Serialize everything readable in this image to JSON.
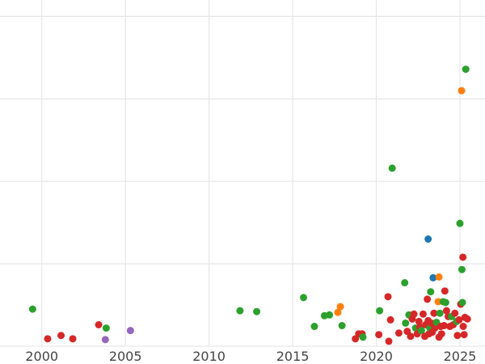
{
  "chart_data": {
    "type": "scatter",
    "title": "",
    "xlabel": "",
    "ylabel": "",
    "xlim": [
      1997.5,
      2026.5
    ],
    "ylim": [
      0,
      4.2
    ],
    "xticks": [
      2000,
      2005,
      2010,
      2015,
      2020,
      2025
    ],
    "yticks": [
      0,
      1,
      2,
      3,
      4
    ],
    "grid": true,
    "legend": "none",
    "colors": {
      "blue": "#1f77b4",
      "orange": "#ff7f0e",
      "green": "#2ca02c",
      "red": "#d62728",
      "purple": "#9467bd"
    },
    "points": [
      {
        "x": 1999.45,
        "y": 0.45,
        "c": "green"
      },
      {
        "x": 2000.35,
        "y": 0.09,
        "c": "red"
      },
      {
        "x": 2001.15,
        "y": 0.13,
        "c": "red"
      },
      {
        "x": 2001.85,
        "y": 0.09,
        "c": "red"
      },
      {
        "x": 2003.4,
        "y": 0.26,
        "c": "red"
      },
      {
        "x": 2003.85,
        "y": 0.22,
        "c": "green"
      },
      {
        "x": 2003.8,
        "y": 0.08,
        "c": "purple"
      },
      {
        "x": 2005.3,
        "y": 0.19,
        "c": "purple"
      },
      {
        "x": 2011.85,
        "y": 0.43,
        "c": "green"
      },
      {
        "x": 2012.85,
        "y": 0.42,
        "c": "green"
      },
      {
        "x": 2015.65,
        "y": 0.59,
        "c": "green"
      },
      {
        "x": 2016.3,
        "y": 0.24,
        "c": "green"
      },
      {
        "x": 2016.9,
        "y": 0.37,
        "c": "green"
      },
      {
        "x": 2017.2,
        "y": 0.38,
        "c": "green"
      },
      {
        "x": 2017.7,
        "y": 0.41,
        "c": "orange"
      },
      {
        "x": 2017.85,
        "y": 0.48,
        "c": "orange"
      },
      {
        "x": 2017.95,
        "y": 0.25,
        "c": "green"
      },
      {
        "x": 2018.75,
        "y": 0.09,
        "c": "red"
      },
      {
        "x": 2018.95,
        "y": 0.15,
        "c": "red"
      },
      {
        "x": 2019.15,
        "y": 0.15,
        "c": "red"
      },
      {
        "x": 2019.2,
        "y": 0.11,
        "c": "green"
      },
      {
        "x": 2020.15,
        "y": 0.14,
        "c": "red"
      },
      {
        "x": 2020.2,
        "y": 0.43,
        "c": "green"
      },
      {
        "x": 2020.7,
        "y": 0.6,
        "c": "red"
      },
      {
        "x": 2020.75,
        "y": 0.06,
        "c": "red"
      },
      {
        "x": 2020.85,
        "y": 0.32,
        "c": "red"
      },
      {
        "x": 2020.95,
        "y": 2.16,
        "c": "green"
      },
      {
        "x": 2021.35,
        "y": 0.16,
        "c": "red"
      },
      {
        "x": 2021.7,
        "y": 0.77,
        "c": "green"
      },
      {
        "x": 2021.75,
        "y": 0.28,
        "c": "green"
      },
      {
        "x": 2021.85,
        "y": 0.18,
        "c": "red"
      },
      {
        "x": 2021.95,
        "y": 0.38,
        "c": "green"
      },
      {
        "x": 2022.05,
        "y": 0.12,
        "c": "red"
      },
      {
        "x": 2022.15,
        "y": 0.33,
        "c": "red"
      },
      {
        "x": 2022.25,
        "y": 0.39,
        "c": "red"
      },
      {
        "x": 2022.35,
        "y": 0.22,
        "c": "green"
      },
      {
        "x": 2022.45,
        "y": 0.15,
        "c": "red"
      },
      {
        "x": 2022.55,
        "y": 0.3,
        "c": "red"
      },
      {
        "x": 2022.6,
        "y": 0.23,
        "c": "red"
      },
      {
        "x": 2022.7,
        "y": 0.19,
        "c": "green"
      },
      {
        "x": 2022.8,
        "y": 0.39,
        "c": "red"
      },
      {
        "x": 2022.9,
        "y": 0.12,
        "c": "red"
      },
      {
        "x": 2022.95,
        "y": 0.26,
        "c": "red"
      },
      {
        "x": 2023.05,
        "y": 0.57,
        "c": "red"
      },
      {
        "x": 2023.1,
        "y": 1.3,
        "c": "blue"
      },
      {
        "x": 2023.1,
        "y": 0.31,
        "c": "red"
      },
      {
        "x": 2023.15,
        "y": 0.15,
        "c": "red"
      },
      {
        "x": 2023.2,
        "y": 0.22,
        "c": "green"
      },
      {
        "x": 2023.25,
        "y": 0.66,
        "c": "green"
      },
      {
        "x": 2023.3,
        "y": 0.28,
        "c": "red"
      },
      {
        "x": 2023.35,
        "y": 0.17,
        "c": "red"
      },
      {
        "x": 2023.4,
        "y": 0.83,
        "c": "blue"
      },
      {
        "x": 2023.45,
        "y": 0.4,
        "c": "red"
      },
      {
        "x": 2023.5,
        "y": 0.22,
        "c": "red"
      },
      {
        "x": 2023.6,
        "y": 0.29,
        "c": "green"
      },
      {
        "x": 2023.7,
        "y": 0.54,
        "c": "orange"
      },
      {
        "x": 2023.75,
        "y": 0.84,
        "c": "orange"
      },
      {
        "x": 2023.75,
        "y": 0.11,
        "c": "red"
      },
      {
        "x": 2023.8,
        "y": 0.4,
        "c": "green"
      },
      {
        "x": 2023.85,
        "y": 0.24,
        "c": "red"
      },
      {
        "x": 2023.9,
        "y": 0.15,
        "c": "red"
      },
      {
        "x": 2024.0,
        "y": 0.54,
        "c": "green"
      },
      {
        "x": 2024.05,
        "y": 0.25,
        "c": "red"
      },
      {
        "x": 2024.1,
        "y": 0.67,
        "c": "red"
      },
      {
        "x": 2024.15,
        "y": 0.53,
        "c": "green"
      },
      {
        "x": 2024.2,
        "y": 0.43,
        "c": "red"
      },
      {
        "x": 2024.3,
        "y": 0.36,
        "c": "red"
      },
      {
        "x": 2024.4,
        "y": 0.24,
        "c": "red"
      },
      {
        "x": 2024.5,
        "y": 0.36,
        "c": "green"
      },
      {
        "x": 2024.6,
        "y": 0.26,
        "c": "red"
      },
      {
        "x": 2024.7,
        "y": 0.4,
        "c": "red"
      },
      {
        "x": 2024.8,
        "y": 0.3,
        "c": "green"
      },
      {
        "x": 2024.85,
        "y": 0.13,
        "c": "red"
      },
      {
        "x": 2024.95,
        "y": 0.32,
        "c": "red"
      },
      {
        "x": 2025.0,
        "y": 1.49,
        "c": "green"
      },
      {
        "x": 2025.05,
        "y": 0.51,
        "c": "red"
      },
      {
        "x": 2025.1,
        "y": 3.1,
        "c": "orange"
      },
      {
        "x": 2025.12,
        "y": 0.93,
        "c": "green"
      },
      {
        "x": 2025.15,
        "y": 0.53,
        "c": "green"
      },
      {
        "x": 2025.18,
        "y": 1.08,
        "c": "red"
      },
      {
        "x": 2025.2,
        "y": 0.24,
        "c": "red"
      },
      {
        "x": 2025.25,
        "y": 0.14,
        "c": "red"
      },
      {
        "x": 2025.3,
        "y": 0.35,
        "c": "red"
      },
      {
        "x": 2025.35,
        "y": 3.36,
        "c": "green"
      },
      {
        "x": 2025.45,
        "y": 0.33,
        "c": "red"
      }
    ]
  }
}
